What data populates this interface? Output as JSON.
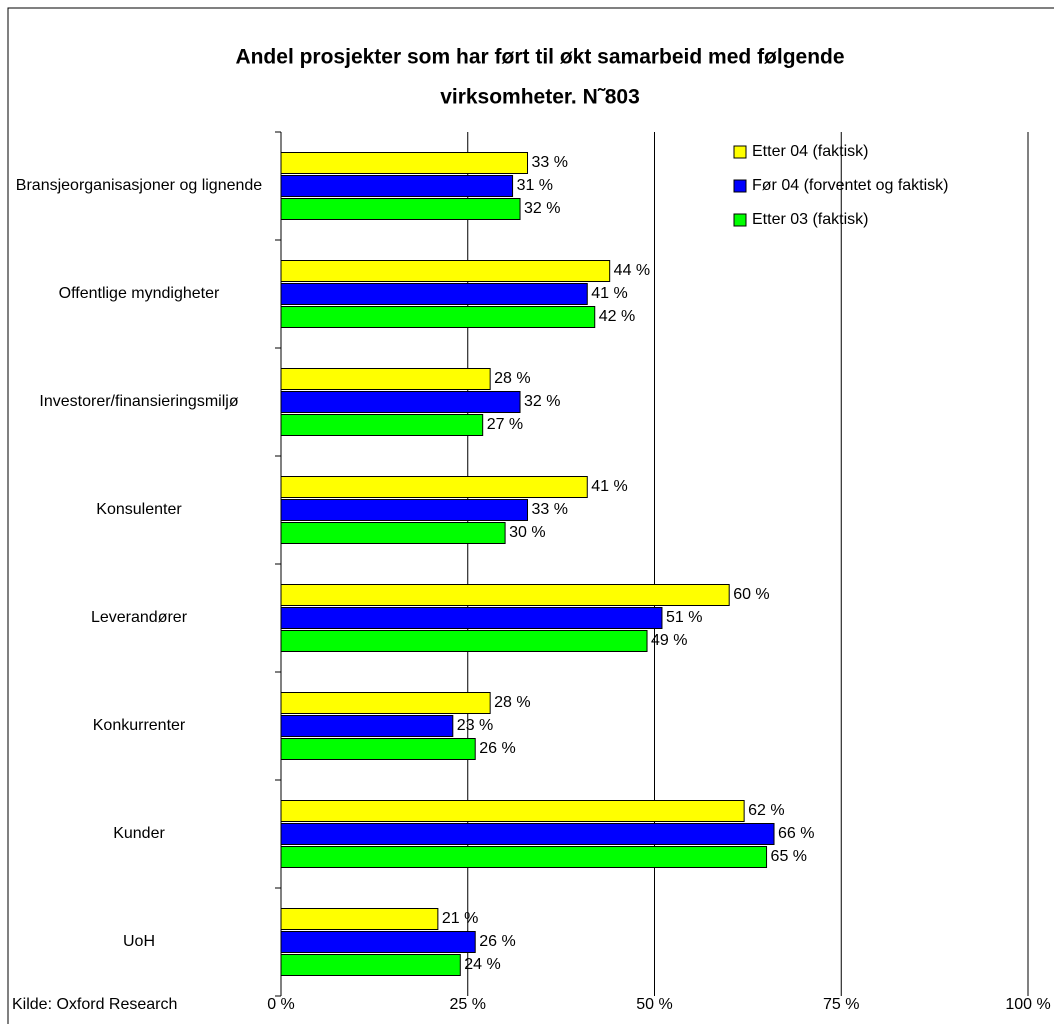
{
  "chart_data": {
    "type": "barh",
    "title": [
      "Andel prosjekter som har ført til økt samarbeid med følgende",
      "virksomheter. N˜803"
    ],
    "source": "Kilde: Oxford Research",
    "categories": [
      "Bransjeorganisasjoner og lignende",
      "Offentlige myndigheter",
      "Investorer/finansieringsmiljø",
      "Konsulenter",
      "Leverandører",
      "Konkurrenter",
      "Kunder",
      "UoH"
    ],
    "series": [
      {
        "name": "Etter 04 (faktisk)",
        "color": "#ffff00",
        "values": [
          33,
          44,
          28,
          41,
          60,
          28,
          62,
          21
        ],
        "value_labels": [
          "33 %",
          "44 %",
          "28 %",
          "41 %",
          "60 %",
          "28 %",
          "62 %",
          "21 %"
        ]
      },
      {
        "name": "Før 04 (forventet og faktisk)",
        "color": "#0000ff",
        "values": [
          31,
          41,
          32,
          33,
          51,
          23,
          66,
          26
        ],
        "value_labels": [
          "31 %",
          "41 %",
          "32 %",
          "33 %",
          "51 %",
          "23 %",
          "66 %",
          "26 %"
        ]
      },
      {
        "name": "Etter 03 (faktisk)",
        "color": "#00ff00",
        "values": [
          32,
          42,
          27,
          30,
          49,
          26,
          65,
          24
        ],
        "value_labels": [
          "32 %",
          "42 %",
          "27 %",
          "30 %",
          "49 %",
          "26 %",
          "65 %",
          "24 %"
        ]
      }
    ],
    "xlim": [
      0,
      100
    ],
    "xticks": [
      {
        "value": 0,
        "label": "0 %"
      },
      {
        "value": 25,
        "label": "25 %"
      },
      {
        "value": 50,
        "label": "50 %"
      },
      {
        "value": 75,
        "label": "75 %"
      },
      {
        "value": 100,
        "label": "100 %"
      }
    ],
    "grid": true,
    "legend": "top-right"
  }
}
